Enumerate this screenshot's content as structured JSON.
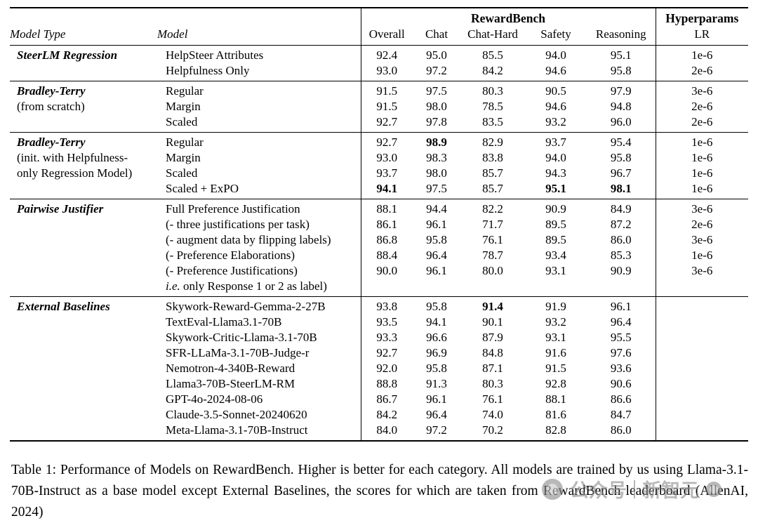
{
  "table": {
    "header": {
      "model_type": "Model Type",
      "model": "Model",
      "group": "RewardBench",
      "metrics": [
        "Overall",
        "Chat",
        "Chat-Hard",
        "Safety",
        "Reasoning"
      ],
      "hyperparams": "Hyperparams",
      "lr": "LR"
    },
    "sections": [
      {
        "type_lines": [
          {
            "text": "SteerLM Regression",
            "bold": true
          }
        ],
        "rows": [
          {
            "model": "HelpSteer Attributes",
            "values": [
              "92.4",
              "95.0",
              "85.5",
              "94.0",
              "95.1",
              "1e-6"
            ]
          },
          {
            "model": "Helpfulness Only",
            "values": [
              "93.0",
              "97.2",
              "84.2",
              "94.6",
              "95.8",
              "2e-6"
            ]
          }
        ]
      },
      {
        "type_lines": [
          {
            "text": "Bradley-Terry",
            "bold": true
          },
          {
            "text": "(from scratch)",
            "bold": false
          }
        ],
        "rows": [
          {
            "model": "Regular",
            "values": [
              "91.5",
              "97.5",
              "80.3",
              "90.5",
              "97.9",
              "3e-6"
            ]
          },
          {
            "model": "Margin",
            "values": [
              "91.5",
              "98.0",
              "78.5",
              "94.6",
              "94.8",
              "2e-6"
            ]
          },
          {
            "model": "Scaled",
            "values": [
              "92.7",
              "97.8",
              "83.5",
              "93.2",
              "96.0",
              "2e-6"
            ]
          }
        ]
      },
      {
        "type_lines": [
          {
            "text": "Bradley-Terry",
            "bold": true
          },
          {
            "text": "(init. with Helpfulness-",
            "bold": false
          },
          {
            "text": "only Regression Model)",
            "bold": false
          }
        ],
        "rows": [
          {
            "model": "Regular",
            "values": [
              "92.7",
              "98.9",
              "82.9",
              "93.7",
              "95.4",
              "1e-6"
            ],
            "bold": [
              false,
              true,
              false,
              false,
              false,
              false
            ]
          },
          {
            "model": "Margin",
            "values": [
              "93.0",
              "98.3",
              "83.8",
              "94.0",
              "95.8",
              "1e-6"
            ]
          },
          {
            "model": "Scaled",
            "values": [
              "93.7",
              "98.0",
              "85.7",
              "94.3",
              "96.7",
              "1e-6"
            ]
          },
          {
            "model": "Scaled + ExPO",
            "values": [
              "94.1",
              "97.5",
              "85.7",
              "95.1",
              "98.1",
              "1e-6"
            ],
            "bold": [
              true,
              false,
              false,
              true,
              true,
              false
            ]
          }
        ]
      },
      {
        "type_lines": [
          {
            "text": "Pairwise Justifier",
            "bold": true
          }
        ],
        "rows": [
          {
            "model": "Full Preference Justification",
            "values": [
              "88.1",
              "94.4",
              "82.2",
              "90.9",
              "84.9",
              "3e-6"
            ]
          },
          {
            "model": "(- three justifications per task)",
            "values": [
              "86.1",
              "96.1",
              "71.7",
              "89.5",
              "87.2",
              "2e-6"
            ]
          },
          {
            "model": "(- augment data by flipping labels)",
            "values": [
              "86.8",
              "95.8",
              "76.1",
              "89.5",
              "86.0",
              "3e-6"
            ]
          },
          {
            "model": "(- Preference Elaborations)",
            "values": [
              "88.4",
              "96.4",
              "78.7",
              "93.4",
              "85.3",
              "1e-6"
            ]
          },
          {
            "model": "(- Preference Justifications)",
            "values": [
              "90.0",
              "96.1",
              "80.0",
              "93.1",
              "90.9",
              "3e-6"
            ]
          },
          {
            "model_italic_prefix": "i.e.",
            "model": " only Response 1 or 2 as label)",
            "values": [
              "",
              "",
              "",
              "",
              "",
              ""
            ]
          }
        ]
      },
      {
        "type_lines": [
          {
            "text": "External Baselines",
            "bold": true
          }
        ],
        "rows": [
          {
            "model": "Skywork-Reward-Gemma-2-27B",
            "values": [
              "93.8",
              "95.8",
              "91.4",
              "91.9",
              "96.1",
              ""
            ],
            "bold": [
              false,
              false,
              true,
              false,
              false,
              false
            ]
          },
          {
            "model": "TextEval-Llama3.1-70B",
            "values": [
              "93.5",
              "94.1",
              "90.1",
              "93.2",
              "96.4",
              ""
            ]
          },
          {
            "model": "Skywork-Critic-Llama-3.1-70B",
            "values": [
              "93.3",
              "96.6",
              "87.9",
              "93.1",
              "95.5",
              ""
            ]
          },
          {
            "model": "SFR-LLaMa-3.1-70B-Judge-r",
            "values": [
              "92.7",
              "96.9",
              "84.8",
              "91.6",
              "97.6",
              ""
            ]
          },
          {
            "model": "Nemotron-4-340B-Reward",
            "values": [
              "92.0",
              "95.8",
              "87.1",
              "91.5",
              "93.6",
              ""
            ]
          },
          {
            "model": "Llama3-70B-SteerLM-RM",
            "values": [
              "88.8",
              "91.3",
              "80.3",
              "92.8",
              "90.6",
              ""
            ]
          },
          {
            "model": "GPT-4o-2024-08-06",
            "values": [
              "86.7",
              "96.1",
              "76.1",
              "88.1",
              "86.6",
              ""
            ]
          },
          {
            "model": "Claude-3.5-Sonnet-20240620",
            "values": [
              "84.2",
              "96.4",
              "74.0",
              "81.6",
              "84.7",
              ""
            ]
          },
          {
            "model": "Meta-Llama-3.1-70B-Instruct",
            "values": [
              "84.0",
              "97.2",
              "70.2",
              "82.8",
              "86.0",
              ""
            ]
          }
        ]
      }
    ]
  },
  "caption": "Table 1: Performance of Models on RewardBench. Higher is better for each category. All models are trained by us using Llama-3.1-70B-Instruct as a base model except External Baselines, the scores for which are taken from RewardBench leaderboard (AllenAI, 2024)",
  "watermark": {
    "label_left": "公众号",
    "label_right": "新智元"
  }
}
